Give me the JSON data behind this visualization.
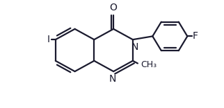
{
  "bg_color": "#ffffff",
  "line_color": "#1a1a2e",
  "bond_lw": 1.6,
  "font_size": 10,
  "fig_width": 3.22,
  "fig_height": 1.56,
  "xlim": [
    0,
    10
  ],
  "ylim": [
    0,
    5
  ]
}
